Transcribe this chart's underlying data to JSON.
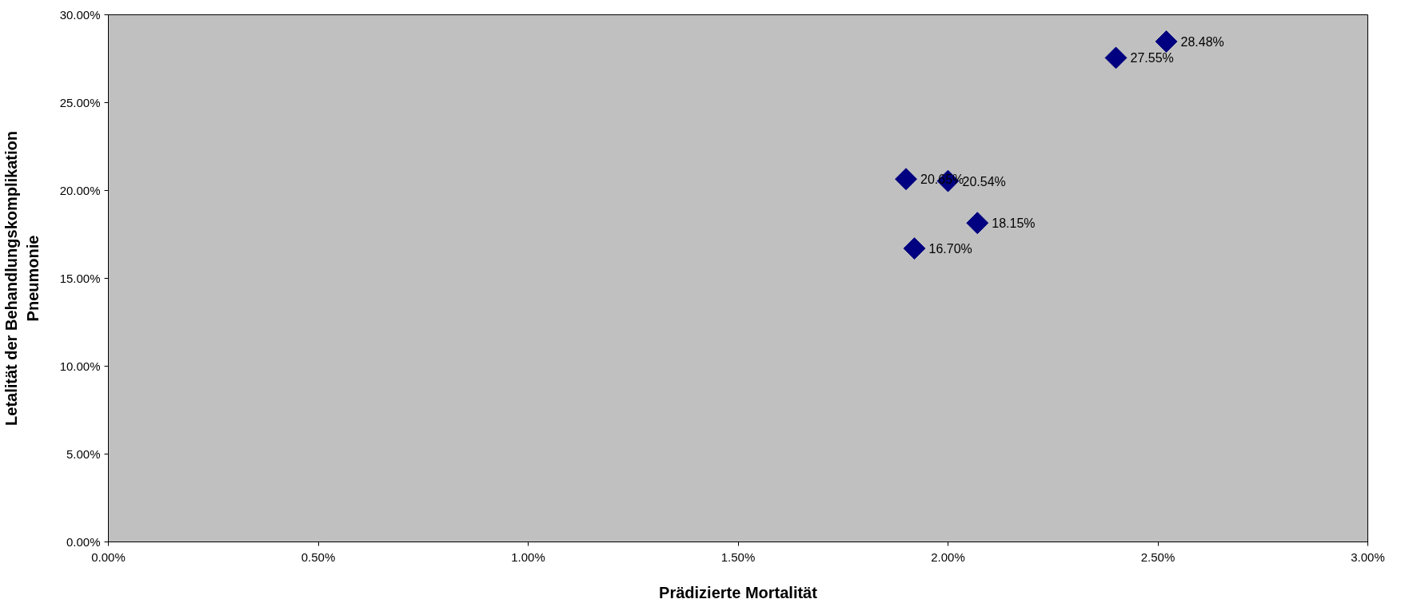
{
  "chart_data": {
    "type": "scatter",
    "xlabel": "Prädizierte Mortalität",
    "ylabel": "Letalität der Behandlungskomplikation\nPneumonie",
    "x": [
      2.52,
      2.4,
      1.9,
      2.0,
      2.07,
      1.92
    ],
    "series": [
      {
        "color": "#000080",
        "values": [
          28.48,
          27.55,
          20.65,
          20.54,
          18.15,
          16.7
        ],
        "value_labels": [
          "28.48%",
          "27.55%",
          "20.65%",
          "20.54%",
          "18.15%",
          "16.70%"
        ]
      }
    ],
    "marker": "diamond",
    "xlim": [
      0,
      3
    ],
    "xticks": [
      {
        "value": 0,
        "label": "0.00%"
      },
      {
        "value": 0.5,
        "label": "0.50%"
      },
      {
        "value": 1,
        "label": "1.00%"
      },
      {
        "value": 1.5,
        "label": "1.50%"
      },
      {
        "value": 2,
        "label": "2.00%"
      },
      {
        "value": 2.5,
        "label": "2.50%"
      },
      {
        "value": 3,
        "label": "3.00%"
      }
    ],
    "ylim": [
      0,
      30
    ],
    "yticks": [
      {
        "value": 0,
        "label": "0.00%"
      },
      {
        "value": 5,
        "label": "5.00%"
      },
      {
        "value": 10,
        "label": "10.00%"
      },
      {
        "value": 15,
        "label": "15.00%"
      },
      {
        "value": 20,
        "label": "20.00%"
      },
      {
        "value": 25,
        "label": "25.00%"
      },
      {
        "value": 30,
        "label": "30.00%"
      }
    ],
    "grid": false
  }
}
